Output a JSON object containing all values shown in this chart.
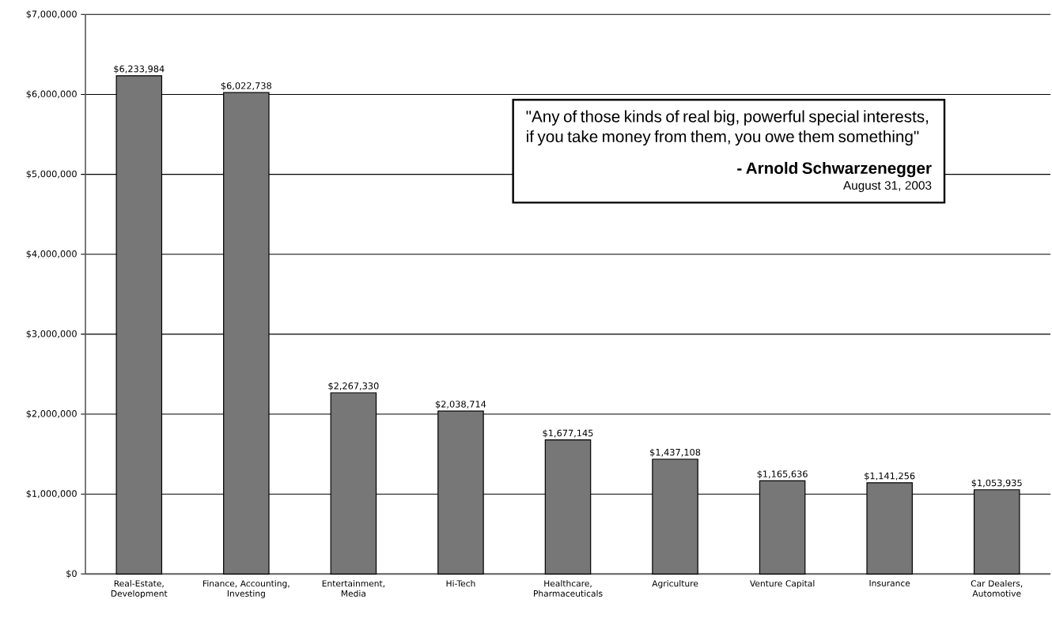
{
  "chart_data": {
    "type": "bar",
    "categories": [
      "Real-Estate, Development",
      "Finance, Accounting, Investing",
      "Entertainment, Media",
      "Hi-Tech",
      "Healthcare, Pharmaceuticals",
      "Agriculture",
      "Venture Capital",
      "Insurance",
      "Car Dealers, Automotive"
    ],
    "values": [
      6233984,
      6022738,
      2267330,
      2038714,
      1677145,
      1437108,
      1165636,
      1141256,
      1053935
    ],
    "value_labels": [
      "$6,233,984",
      "$6,022,738",
      "$2,267,330",
      "$2,038,714",
      "$1,677,145",
      "$1,437,108",
      "$1,165,636",
      "$1,141,256",
      "$1,053,935"
    ],
    "color": "#777777",
    "ylim": [
      0,
      7000000
    ],
    "yticks": [
      {
        "value": 0,
        "label": "$0"
      },
      {
        "value": 1000000,
        "label": "$1,000,000"
      },
      {
        "value": 2000000,
        "label": "$2,000,000"
      },
      {
        "value": 3000000,
        "label": "$3,000,000"
      },
      {
        "value": 4000000,
        "label": "$4,000,000"
      },
      {
        "value": 5000000,
        "label": "$5,000,000"
      },
      {
        "value": 6000000,
        "label": "$6,000,000"
      },
      {
        "value": 7000000,
        "label": "$7,000,000"
      }
    ],
    "grid": "y",
    "annotations": [
      "\"Any of those kinds of real big, powerful special interests, if you take money from them, you owe them something\"",
      "- Arnold Schwarzenegger",
      "August 31, 2003"
    ]
  }
}
